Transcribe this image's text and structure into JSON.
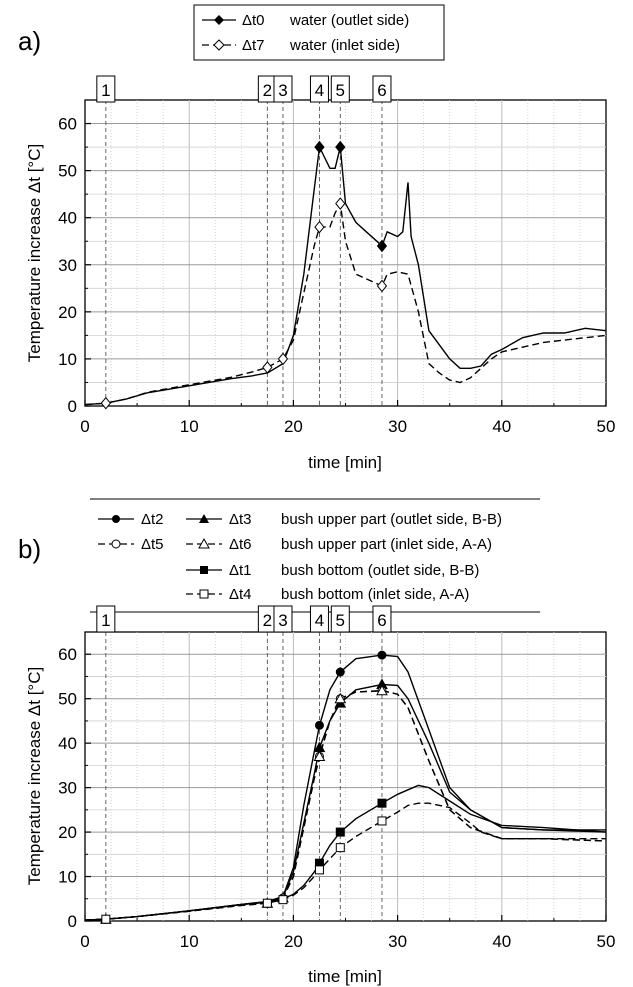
{
  "chart_data": [
    {
      "panel_label": "a)",
      "type": "line",
      "xlabel": "time [min]",
      "ylabel": "Temperature increase Δt [°C]",
      "xlim": [
        0,
        50
      ],
      "ylim": [
        0,
        65
      ],
      "xticks": [
        "0",
        "10",
        "20",
        "30",
        "40",
        "50"
      ],
      "yticks": [
        "0",
        "10",
        "20",
        "30",
        "40",
        "50",
        "60"
      ],
      "grid": true,
      "legend_position": "top",
      "markers": [
        {
          "label": "1",
          "x": 2
        },
        {
          "label": "2",
          "x": 17.5
        },
        {
          "label": "3",
          "x": 19
        },
        {
          "label": "4",
          "x": 22.5
        },
        {
          "label": "5",
          "x": 24.5
        },
        {
          "label": "6",
          "x": 28.5
        }
      ],
      "series": [
        {
          "name": "Δt0",
          "description": "water (outlet side)",
          "dash": "solid",
          "marker": "diamond-filled",
          "points": [
            [
              0,
              0.3
            ],
            [
              2,
              0.6
            ],
            [
              4,
              1.5
            ],
            [
              6,
              2.8
            ],
            [
              10,
              4.3
            ],
            [
              14,
              5.8
            ],
            [
              16,
              6.4
            ],
            [
              17.5,
              7
            ],
            [
              19,
              9
            ],
            [
              20,
              15
            ],
            [
              21,
              28
            ],
            [
              22,
              46
            ],
            [
              22.5,
              55
            ],
            [
              23.5,
              50.5
            ],
            [
              24,
              50.5
            ],
            [
              24.5,
              55
            ],
            [
              25,
              43
            ],
            [
              26,
              39
            ],
            [
              27,
              37
            ],
            [
              28,
              35
            ],
            [
              28.5,
              34
            ],
            [
              29,
              37
            ],
            [
              30,
              36
            ],
            [
              30.5,
              37
            ],
            [
              31,
              47.5
            ],
            [
              31.3,
              36
            ],
            [
              32,
              30
            ],
            [
              33,
              16
            ],
            [
              34,
              13
            ],
            [
              35,
              10
            ],
            [
              36,
              8
            ],
            [
              37,
              8
            ],
            [
              38,
              8.5
            ],
            [
              39,
              11
            ],
            [
              40,
              12
            ],
            [
              42,
              14.5
            ],
            [
              44,
              15.5
            ],
            [
              46,
              15.5
            ],
            [
              48,
              16.5
            ],
            [
              50,
              16
            ]
          ],
          "marked_x": [
            22.5,
            24.5,
            28.5
          ]
        },
        {
          "name": "Δt7",
          "description": "water (inlet side)",
          "dash": "dashed",
          "marker": "diamond-open",
          "points": [
            [
              0,
              0.3
            ],
            [
              2,
              0.6
            ],
            [
              4,
              1.5
            ],
            [
              6,
              2.9
            ],
            [
              10,
              4.5
            ],
            [
              14,
              6.1
            ],
            [
              16,
              7.2
            ],
            [
              17.5,
              8.2
            ],
            [
              19,
              10
            ],
            [
              20,
              14
            ],
            [
              21,
              24
            ],
            [
              22,
              34
            ],
            [
              22.5,
              38
            ],
            [
              23.5,
              38
            ],
            [
              24,
              41
            ],
            [
              24.5,
              43
            ],
            [
              25,
              35
            ],
            [
              26,
              28
            ],
            [
              27,
              27
            ],
            [
              28,
              26
            ],
            [
              28.5,
              25.5
            ],
            [
              29,
              28
            ],
            [
              30,
              28.5
            ],
            [
              31,
              28
            ],
            [
              32,
              20
            ],
            [
              33,
              9
            ],
            [
              34,
              7
            ],
            [
              35,
              5.5
            ],
            [
              36,
              5
            ],
            [
              37,
              6
            ],
            [
              38,
              8
            ],
            [
              39,
              10
            ],
            [
              40,
              11.5
            ],
            [
              42,
              12.5
            ],
            [
              44,
              13.5
            ],
            [
              46,
              14
            ],
            [
              48,
              14.5
            ],
            [
              50,
              15
            ]
          ],
          "marked_x": [
            2,
            17.5,
            19,
            22.5,
            24.5,
            28.5
          ]
        }
      ]
    },
    {
      "panel_label": "b)",
      "type": "line",
      "xlabel": "time [min]",
      "ylabel": "Temperature increase Δt [°C]",
      "xlim": [
        0,
        50
      ],
      "ylim": [
        0,
        65
      ],
      "xticks": [
        "0",
        "10",
        "20",
        "30",
        "40",
        "50"
      ],
      "yticks": [
        "0",
        "10",
        "20",
        "30",
        "40",
        "50",
        "60"
      ],
      "grid": true,
      "legend_position": "top",
      "markers": [
        {
          "label": "1",
          "x": 2
        },
        {
          "label": "2",
          "x": 17.5
        },
        {
          "label": "3",
          "x": 19
        },
        {
          "label": "4",
          "x": 22.5
        },
        {
          "label": "5",
          "x": 24.5
        },
        {
          "label": "6",
          "x": 28.5
        }
      ],
      "legend_rows": [
        {
          "items": [
            "Δt2",
            "Δt3"
          ],
          "text": "bush upper part (outlet side, B-B)"
        },
        {
          "items": [
            "Δt5",
            "Δt6"
          ],
          "text": "bush upper part (inlet side, A-A)"
        },
        {
          "items": [
            "Δt1"
          ],
          "text": "bush bottom (outlet side, B-B)"
        },
        {
          "items": [
            "Δt4"
          ],
          "text": "bush bottom (inlet side, A-A)"
        }
      ],
      "series": [
        {
          "name": "Δt2",
          "dash": "solid",
          "marker": "circle-filled",
          "points": [
            [
              0,
              0.2
            ],
            [
              2,
              0.4
            ],
            [
              5,
              1
            ],
            [
              10,
              2.3
            ],
            [
              15,
              3.7
            ],
            [
              17.5,
              4.4
            ],
            [
              19,
              5.5
            ],
            [
              20,
              12
            ],
            [
              21,
              26
            ],
            [
              22,
              38
            ],
            [
              22.5,
              44
            ],
            [
              23.5,
              52
            ],
            [
              24.5,
              56
            ],
            [
              26,
              59
            ],
            [
              28.5,
              59.8
            ],
            [
              30,
              59.5
            ],
            [
              31,
              56
            ],
            [
              33,
              43
            ],
            [
              35,
              30
            ],
            [
              37,
              25
            ],
            [
              40,
              21
            ],
            [
              44,
              20.5
            ],
            [
              50,
              20
            ]
          ],
          "marked_x": [
            22.5,
            24.5,
            28.5
          ]
        },
        {
          "name": "Δt3",
          "dash": "solid",
          "marker": "triangle-filled",
          "points": [
            [
              0,
              0.2
            ],
            [
              2,
              0.4
            ],
            [
              5,
              1
            ],
            [
              10,
              2.3
            ],
            [
              15,
              3.7
            ],
            [
              17.5,
              4.3
            ],
            [
              19,
              5.4
            ],
            [
              20,
              11
            ],
            [
              21,
              22
            ],
            [
              22,
              33
            ],
            [
              22.5,
              39
            ],
            [
              23.5,
              45
            ],
            [
              24.5,
              49
            ],
            [
              26,
              52
            ],
            [
              28.5,
              53.2
            ],
            [
              30,
              53
            ],
            [
              31,
              50
            ],
            [
              33,
              40
            ],
            [
              35,
              29
            ],
            [
              37,
              25
            ],
            [
              40,
              21
            ],
            [
              44,
              20.5
            ],
            [
              50,
              20.5
            ]
          ],
          "marked_x": [
            22.5,
            24.5,
            28.5
          ]
        },
        {
          "name": "Δt5",
          "dash": "dashed",
          "marker": "circle-open",
          "points": [
            [
              0,
              0.2
            ],
            [
              2,
              0.4
            ],
            [
              5,
              1
            ],
            [
              10,
              2.2
            ],
            [
              15,
              3.5
            ],
            [
              17.5,
              4
            ],
            [
              19,
              5.2
            ],
            [
              20,
              10
            ],
            [
              21,
              21
            ],
            [
              22,
              32
            ],
            [
              22.5,
              37
            ],
            [
              23.5,
              45
            ],
            [
              24.5,
              50
            ],
            [
              26,
              51.5
            ],
            [
              28.5,
              51.8
            ],
            [
              30,
              51
            ],
            [
              31,
              48
            ],
            [
              33,
              36
            ],
            [
              35,
              25
            ],
            [
              37,
              21
            ],
            [
              40,
              18.5
            ],
            [
              44,
              18.5
            ],
            [
              50,
              18
            ]
          ],
          "marked_x": [
            2,
            17.5,
            19,
            22.5,
            24.5,
            28.5
          ]
        },
        {
          "name": "Δt6",
          "dash": "dashed",
          "marker": "triangle-open",
          "points": [
            [
              0,
              0.2
            ],
            [
              2,
              0.4
            ],
            [
              5,
              1
            ],
            [
              10,
              2.2
            ],
            [
              15,
              3.5
            ],
            [
              17.5,
              4
            ],
            [
              19,
              5.2
            ],
            [
              20,
              10
            ],
            [
              21,
              21
            ],
            [
              22,
              32
            ],
            [
              22.5,
              37
            ],
            [
              23.5,
              45
            ],
            [
              24.5,
              50
            ],
            [
              26,
              51.5
            ],
            [
              28.5,
              51.8
            ],
            [
              30,
              51
            ],
            [
              31,
              48
            ],
            [
              33,
              36
            ],
            [
              35,
              25
            ],
            [
              37,
              21
            ],
            [
              40,
              18.5
            ],
            [
              44,
              18.5
            ],
            [
              50,
              18
            ]
          ],
          "marked_x": [
            2,
            17.5,
            19,
            22.5,
            24.5,
            28.5
          ]
        },
        {
          "name": "Δt1",
          "dash": "solid",
          "marker": "square-filled",
          "points": [
            [
              0,
              0.2
            ],
            [
              2,
              0.4
            ],
            [
              5,
              1
            ],
            [
              10,
              2.3
            ],
            [
              15,
              3.7
            ],
            [
              17.5,
              4.2
            ],
            [
              19,
              5
            ],
            [
              20,
              6
            ],
            [
              21,
              8
            ],
            [
              22,
              11
            ],
            [
              22.5,
              13
            ],
            [
              23.5,
              17
            ],
            [
              24.5,
              20
            ],
            [
              26,
              23
            ],
            [
              28.5,
              26.5
            ],
            [
              30,
              28.5
            ],
            [
              31,
              29.5
            ],
            [
              32,
              30.5
            ],
            [
              33,
              30
            ],
            [
              35,
              27
            ],
            [
              37,
              24
            ],
            [
              40,
              21.5
            ],
            [
              44,
              21
            ],
            [
              50,
              20
            ]
          ],
          "marked_x": [
            22.5,
            24.5,
            28.5
          ]
        },
        {
          "name": "Δt4",
          "dash": "dashed",
          "marker": "square-open",
          "points": [
            [
              0,
              0.2
            ],
            [
              2,
              0.4
            ],
            [
              5,
              1
            ],
            [
              10,
              2.2
            ],
            [
              15,
              3.5
            ],
            [
              17.5,
              4
            ],
            [
              19,
              4.8
            ],
            [
              20,
              5.8
            ],
            [
              21,
              7.5
            ],
            [
              22,
              10
            ],
            [
              22.5,
              11.5
            ],
            [
              23.5,
              14
            ],
            [
              24.5,
              16.5
            ],
            [
              26,
              19
            ],
            [
              28.5,
              22.5
            ],
            [
              30,
              24.5
            ],
            [
              31,
              26
            ],
            [
              32,
              26.5
            ],
            [
              33,
              26.5
            ],
            [
              35,
              25.5
            ],
            [
              37,
              22
            ],
            [
              38,
              20
            ],
            [
              40,
              18.5
            ],
            [
              44,
              18.5
            ],
            [
              50,
              18.5
            ]
          ],
          "marked_x": [
            2,
            17.5,
            19,
            22.5,
            24.5,
            28.5
          ]
        }
      ]
    }
  ]
}
